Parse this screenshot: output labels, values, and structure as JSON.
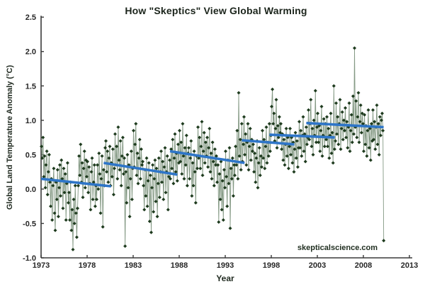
{
  "title": "How \"Skeptics\" View Global Warming",
  "watermark": "skepticalscience.com",
  "colors": {
    "marker": "#1d3a1d",
    "connector": "#7d937d",
    "trend": "#2e75c8",
    "axis": "#3a3a3a",
    "title_text": "#1b241b",
    "background": "#ffffff"
  },
  "chart_data": {
    "type": "line",
    "title": "How \"Skeptics\" View Global Warming",
    "xlabel": "Year",
    "ylabel": "Global Land Temperature Anomaly (°C)",
    "xlim": [
      1973,
      2013
    ],
    "ylim": [
      -1.0,
      2.5
    ],
    "x_ticks": [
      1973,
      1978,
      1983,
      1988,
      1993,
      1998,
      2003,
      2008,
      2013
    ],
    "y_ticks": [
      2.5,
      2.0,
      1.5,
      1.0,
      0.5,
      0.0,
      -0.5,
      -1.0
    ],
    "grid": false,
    "legend_position": "none",
    "series": [
      {
        "name": "monthly-land-temperature-anomaly",
        "marker": "diamond",
        "start_year": 1973,
        "interval_months": 1,
        "values": [
          0.62,
          0.45,
          0.75,
          0.18,
          0.48,
          0.02,
          0.35,
          0.55,
          -0.08,
          0.25,
          0.5,
          0.1,
          -0.25,
          0.15,
          -0.45,
          0.05,
          0.3,
          -0.35,
          -0.6,
          0.1,
          -0.15,
          0.28,
          -0.4,
          0.02,
          0.35,
          -0.1,
          0.42,
          0.15,
          -0.28,
          0.3,
          -0.05,
          0.22,
          -0.45,
          0.08,
          0.38,
          -0.2,
          -0.05,
          -0.45,
          0.1,
          -0.6,
          -0.3,
          -0.88,
          -0.15,
          -0.5,
          0.05,
          -0.35,
          -0.7,
          -0.28,
          0.05,
          0.48,
          0.2,
          0.65,
          0.1,
          0.38,
          -0.12,
          0.3,
          0.55,
          0.02,
          0.42,
          0.18,
          0.4,
          -0.05,
          0.32,
          0.08,
          -0.3,
          0.25,
          0.45,
          -0.15,
          0.1,
          0.35,
          -0.25,
          0.05,
          -0.15,
          0.35,
          0.0,
          0.52,
          0.22,
          -0.35,
          0.15,
          0.48,
          -0.55,
          0.28,
          0.05,
          0.6,
          0.7,
          0.25,
          0.55,
          0.1,
          0.45,
          0.62,
          0.05,
          0.38,
          0.18,
          0.58,
          -0.08,
          0.3,
          0.8,
          0.35,
          0.62,
          0.15,
          0.9,
          0.42,
          0.28,
          0.7,
          0.05,
          0.48,
          0.75,
          0.22,
          0.45,
          -0.83,
          0.25,
          -0.2,
          0.5,
          0.02,
          0.35,
          -0.4,
          0.15,
          0.55,
          -0.15,
          0.3,
          0.85,
          0.32,
          0.65,
          0.95,
          0.2,
          0.52,
          0.08,
          0.45,
          0.72,
          0.15,
          0.58,
          0.35,
          0.4,
          0.05,
          -0.3,
          0.28,
          -0.1,
          0.45,
          -0.25,
          0.12,
          0.38,
          -0.47,
          0.2,
          -0.63,
          0.02,
          0.35,
          -0.33,
          0.15,
          0.42,
          -0.18,
          0.3,
          -0.4,
          0.08,
          0.45,
          -0.12,
          0.25,
          0.55,
          0.1,
          0.4,
          -0.15,
          0.32,
          0.6,
          -0.05,
          0.25,
          0.48,
          -0.3,
          0.18,
          0.42,
          0.15,
          0.58,
          0.3,
          0.72,
          0.08,
          0.45,
          0.8,
          0.25,
          0.52,
          0.12,
          0.65,
          0.38,
          0.85,
          0.4,
          0.68,
          0.22,
          0.95,
          0.48,
          0.15,
          0.6,
          0.35,
          0.78,
          0.05,
          0.52,
          0.6,
          0.15,
          0.45,
          0.7,
          -0.1,
          0.38,
          0.05,
          0.55,
          0.25,
          -0.2,
          0.48,
          0.3,
          0.9,
          0.45,
          0.75,
          0.3,
          0.62,
          0.98,
          0.2,
          0.55,
          0.82,
          0.38,
          0.68,
          0.48,
          0.75,
          0.32,
          0.6,
          0.88,
          0.25,
          0.52,
          0.15,
          0.68,
          0.4,
          0.05,
          0.58,
          0.35,
          0.48,
          0.1,
          0.35,
          -0.48,
          0.22,
          -0.15,
          0.4,
          -0.3,
          0.12,
          -0.45,
          0.28,
          0.02,
          0.55,
          0.18,
          -0.25,
          0.42,
          0.08,
          0.6,
          -0.57,
          0.3,
          0.15,
          0.45,
          -0.1,
          0.35,
          0.2,
          0.62,
          0.35,
          0.85,
          0.15,
          1.4,
          0.48,
          0.72,
          0.28,
          0.95,
          0.4,
          0.65,
          1.05,
          0.5,
          0.8,
          0.35,
          0.68,
          0.95,
          0.28,
          0.62,
          0.88,
          0.42,
          0.72,
          0.55,
          0.65,
          0.25,
          0.52,
          0.1,
          0.45,
          0.7,
          0.02,
          0.38,
          0.6,
          0.2,
          0.48,
          0.32,
          0.85,
          0.45,
          0.72,
          0.3,
          0.62,
          0.9,
          0.38,
          0.68,
          0.48,
          0.95,
          0.55,
          0.78,
          1.2,
          1.45,
          0.95,
          1.1,
          0.7,
          0.88,
          1.3,
          0.6,
          0.92,
          0.75,
          1.05,
          0.82,
          0.95,
          0.58,
          0.8,
          0.42,
          0.72,
          0.35,
          0.65,
          0.88,
          0.48,
          0.75,
          0.3,
          0.62,
          0.88,
          0.5,
          0.75,
          0.38,
          0.68,
          0.25,
          0.58,
          0.82,
          0.45,
          0.7,
          0.32,
          0.6,
          0.98,
          0.6,
          0.85,
          0.48,
          0.78,
          1.05,
          0.55,
          0.8,
          0.4,
          0.9,
          0.65,
          0.75,
          1.15,
          0.72,
          0.95,
          1.3,
          0.62,
          0.88,
          0.5,
          1.0,
          0.78,
          1.43,
          0.68,
          0.9,
          1.1,
          0.68,
          0.92,
          0.55,
          0.85,
          1.2,
          0.48,
          0.78,
          1.02,
          0.62,
          0.95,
          0.72,
          1.05,
          0.62,
          0.88,
          0.45,
          0.78,
          1.1,
          0.52,
          0.82,
          0.38,
          1.5,
          0.58,
          0.7,
          1.25,
          0.8,
          1.05,
          0.65,
          0.95,
          1.3,
          0.58,
          0.88,
          1.12,
          0.72,
          1.0,
          0.85,
          1.18,
          0.75,
          0.98,
          0.6,
          0.9,
          1.25,
          0.55,
          0.85,
          1.08,
          0.68,
          1.35,
          0.8,
          2.05,
          0.9,
          1.28,
          0.75,
          1.05,
          1.4,
          0.68,
          0.98,
          1.22,
          0.82,
          1.1,
          0.95,
          0.55,
          1.08,
          0.65,
          0.92,
          0.48,
          0.85,
          1.15,
          0.6,
          0.88,
          0.42,
          0.95,
          0.7,
          1.15,
          0.72,
          0.98,
          0.58,
          0.9,
          1.22,
          0.65,
          0.95,
          0.5,
          1.05,
          0.78,
          1.0,
          1.1,
          0.85,
          -0.75
        ]
      }
    ],
    "trend_segments": {
      "name": "skeptic-cooling-trend-lines",
      "segments": [
        {
          "start_year": 1973.0,
          "end_year": 1980.6,
          "start_value": 0.15,
          "end_value": 0.04
        },
        {
          "start_year": 1979.8,
          "end_year": 1987.8,
          "start_value": 0.38,
          "end_value": 0.21
        },
        {
          "start_year": 1987.0,
          "end_year": 1995.1,
          "start_value": 0.55,
          "end_value": 0.38
        },
        {
          "start_year": 1994.8,
          "end_year": 2000.5,
          "start_value": 0.71,
          "end_value": 0.65
        },
        {
          "start_year": 1997.8,
          "end_year": 2004.9,
          "start_value": 0.79,
          "end_value": 0.75
        },
        {
          "start_year": 2001.8,
          "end_year": 2010.2,
          "start_value": 0.96,
          "end_value": 0.9
        }
      ]
    }
  }
}
